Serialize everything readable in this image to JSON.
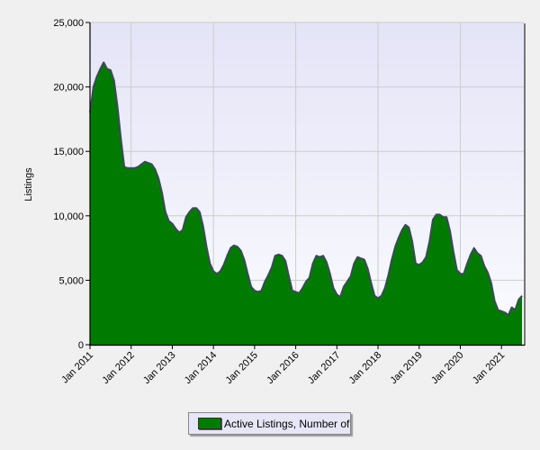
{
  "chart_data": {
    "type": "area",
    "title": "",
    "xlabel": "",
    "ylabel": "Listings",
    "ylim": [
      0,
      25000
    ],
    "y_ticks": [
      "0",
      "5,000",
      "10,000",
      "15,000",
      "20,000",
      "25,000"
    ],
    "x_tick_labels": [
      "Jan 2011",
      "Jan 2012",
      "Jan 2013",
      "Jan 2014",
      "Jan 2015",
      "Jan 2016",
      "Jan 2017",
      "Jan 2018",
      "Jan 2019",
      "Jan 2020",
      "Jan 2021"
    ],
    "x_start": "Jan 2011",
    "x_end": "Jul 2021",
    "x_interval": "monthly",
    "grid": true,
    "legend_position": "bottom",
    "series": [
      {
        "name": "Active Listings, Number of",
        "color": "#007a00",
        "values": [
          18000,
          20000,
          20800,
          21400,
          21900,
          21400,
          21300,
          20500,
          18500,
          16000,
          13800,
          13700,
          13700,
          13700,
          13800,
          14000,
          14200,
          14100,
          14000,
          13600,
          12900,
          11800,
          10300,
          9600,
          9400,
          9000,
          8700,
          8900,
          9900,
          10300,
          10600,
          10600,
          10300,
          9200,
          7600,
          6300,
          5700,
          5500,
          5700,
          6200,
          6900,
          7500,
          7700,
          7600,
          7300,
          6600,
          5500,
          4500,
          4200,
          4100,
          4200,
          4900,
          5400,
          6000,
          6900,
          7000,
          6900,
          6500,
          5300,
          4200,
          4100,
          4000,
          4400,
          4900,
          5200,
          6300,
          6900,
          6800,
          6900,
          6400,
          5500,
          4400,
          3900,
          3700,
          4500,
          4900,
          5300,
          6300,
          6800,
          6700,
          6600,
          5900,
          4800,
          3800,
          3600,
          3800,
          4400,
          5400,
          6600,
          7600,
          8300,
          8900,
          9300,
          9100,
          8000,
          6300,
          6200,
          6400,
          6800,
          8000,
          9700,
          10100,
          10100,
          9900,
          9900,
          8800,
          7200,
          5800,
          5500,
          5500,
          6300,
          7000,
          7500,
          7100,
          6900,
          6100,
          5600,
          4800,
          3400,
          2700,
          2600,
          2500,
          2300,
          2900,
          2700,
          3500,
          3800
        ]
      }
    ]
  }
}
